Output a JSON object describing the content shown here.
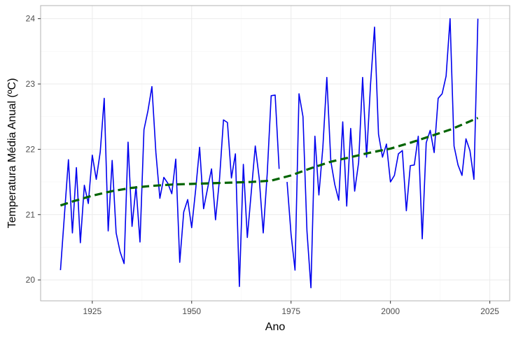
{
  "chart_data": {
    "type": "line",
    "title": "",
    "xlabel": "Ano",
    "ylabel": "Temperatura Média Anual (ºC)",
    "xlim": [
      1912,
      2030
    ],
    "ylim": [
      19.68,
      24.2
    ],
    "x_ticks": [
      1925,
      1950,
      1975,
      2000,
      2025
    ],
    "y_ticks": [
      20,
      21,
      22,
      23,
      24
    ],
    "grid": true,
    "legend": "none",
    "colors": {
      "series": "#0000ee",
      "trend": "#006400",
      "grid_major": "#ebebeb",
      "grid_minor": "#f5f5f5",
      "border": "#b3b3b3"
    },
    "series": [
      {
        "style": "solid",
        "x": [
          1917,
          1918,
          1919,
          1920,
          1921,
          1922,
          1923,
          1924,
          1925,
          1926,
          1927,
          1928,
          1929,
          1930,
          1931,
          1932,
          1933,
          1934,
          1935,
          1936,
          1937,
          1938,
          1939,
          1940,
          1941,
          1942,
          1943,
          1944,
          1945,
          1946,
          1947,
          1948,
          1949,
          1950,
          1951,
          1952,
          1953,
          1954,
          1955,
          1956,
          1957,
          1958,
          1959,
          1960,
          1961,
          1962,
          1963,
          1964,
          1965,
          1966,
          1967,
          1968,
          1969,
          1970,
          1971,
          1972,
          1973,
          1974,
          1975,
          1976,
          1977,
          1978,
          1979,
          1980,
          1981,
          1982,
          1983,
          1984,
          1985,
          1986,
          1987,
          1988,
          1989,
          1990,
          1991,
          1992,
          1993,
          1994,
          1995,
          1996,
          1997,
          1998,
          1999,
          2000,
          2001,
          2002,
          2003,
          2004,
          2005,
          2006,
          2007,
          2008,
          2009,
          2010,
          2011,
          2012,
          2013,
          2014,
          2015,
          2016,
          2017,
          2018,
          2019,
          2020,
          2021,
          2022
        ],
        "y": [
          20.15,
          21.0,
          21.84,
          20.72,
          21.72,
          20.57,
          21.45,
          21.17,
          21.91,
          21.54,
          21.96,
          22.78,
          20.75,
          21.83,
          20.72,
          20.43,
          20.25,
          22.11,
          20.82,
          21.43,
          20.58,
          22.3,
          22.59,
          22.96,
          21.95,
          21.25,
          21.57,
          21.48,
          21.32,
          21.85,
          20.27,
          21.04,
          21.23,
          20.8,
          21.38,
          22.03,
          21.09,
          21.4,
          21.7,
          20.92,
          21.54,
          22.45,
          22.41,
          21.56,
          21.93,
          19.9,
          21.77,
          20.65,
          21.35,
          22.05,
          21.55,
          20.72,
          21.62,
          22.82,
          22.83,
          21.7,
          null,
          21.5,
          20.7,
          20.15,
          22.85,
          22.5,
          20.75,
          19.88,
          22.2,
          21.3,
          22.03,
          23.1,
          21.82,
          21.46,
          21.22,
          22.42,
          21.13,
          22.32,
          21.36,
          21.8,
          23.1,
          21.88,
          23.0,
          23.87,
          22.23,
          21.88,
          22.08,
          21.5,
          21.6,
          21.93,
          21.98,
          21.06,
          21.75,
          21.76,
          22.2,
          20.63,
          22.1,
          22.29,
          21.95,
          22.78,
          22.85,
          23.12,
          24.0,
          22.05,
          21.76,
          21.6,
          22.16,
          21.98,
          21.54,
          24.0
        ]
      },
      {
        "style": "dashed",
        "x": [
          1917,
          1920,
          1925,
          1930,
          1935,
          1940,
          1945,
          1950,
          1955,
          1960,
          1965,
          1970,
          1975,
          1980,
          1985,
          1990,
          1995,
          2000,
          2005,
          2010,
          2015,
          2022
        ],
        "y": [
          21.14,
          21.2,
          21.29,
          21.36,
          21.41,
          21.44,
          21.46,
          21.47,
          21.48,
          21.49,
          21.5,
          21.52,
          21.6,
          21.71,
          21.81,
          21.88,
          21.95,
          22.01,
          22.1,
          22.2,
          22.3,
          22.48
        ]
      }
    ]
  }
}
